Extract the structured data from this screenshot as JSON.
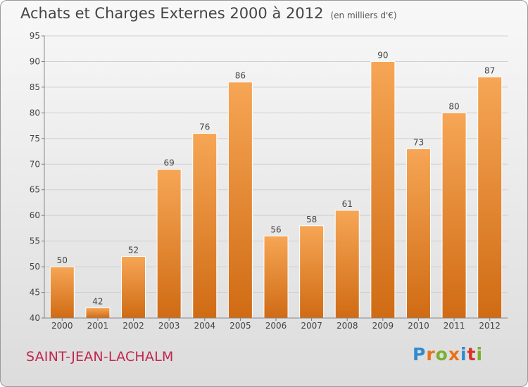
{
  "header": {
    "title": "Achats et Charges Externes 2000 à 2012",
    "unit": "(en milliers d'€)"
  },
  "footer": {
    "place": "SAINT-JEAN-LACHALM",
    "brand_letters": [
      "P",
      "r",
      "o",
      "x",
      "i",
      "t",
      "i"
    ],
    "brand_colors": [
      "#2f8bd0",
      "#e8731c",
      "#7ab02c",
      "#e8731c",
      "#2f8bd0",
      "#d9322a",
      "#7ab02c"
    ]
  },
  "colors": {
    "bar_top": "#f6a655",
    "bar_bottom": "#d06b14",
    "grid": "#cfcfcf",
    "axis_text": "#444444"
  },
  "chart_data": {
    "type": "bar",
    "categories": [
      "2000",
      "2001",
      "2002",
      "2003",
      "2004",
      "2005",
      "2006",
      "2007",
      "2008",
      "2009",
      "2010",
      "2011",
      "2012"
    ],
    "values": [
      50,
      42,
      52,
      69,
      76,
      86,
      56,
      58,
      61,
      90,
      73,
      80,
      87
    ],
    "ylim": [
      40,
      95
    ],
    "yticks": [
      40,
      45,
      50,
      55,
      60,
      65,
      70,
      75,
      80,
      85,
      90,
      95
    ],
    "grid": true
  }
}
